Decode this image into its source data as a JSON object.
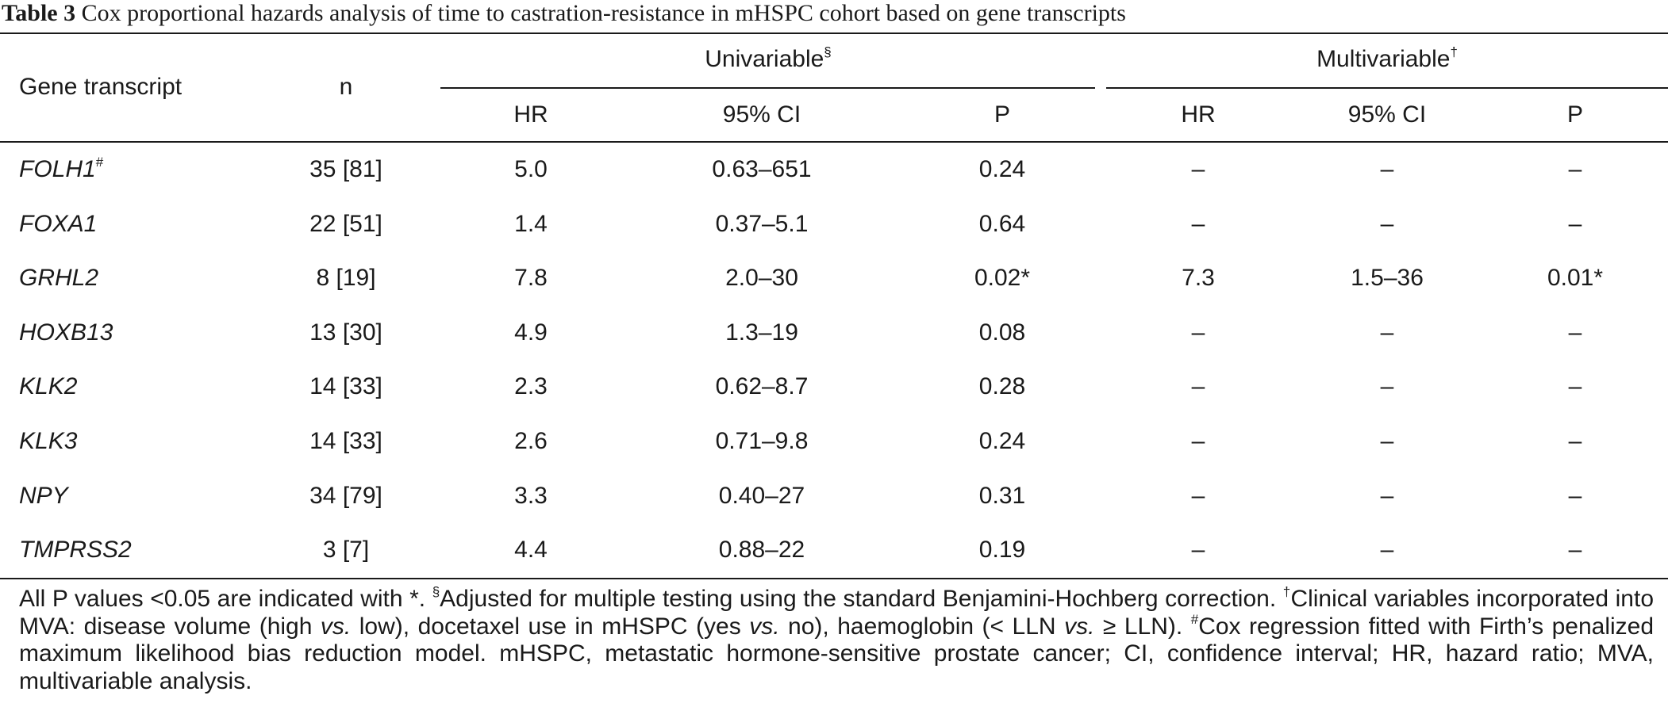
{
  "caption": {
    "label": "Table 3",
    "text": "Cox proportional hazards analysis of time to castration-resistance in mHSPC cohort based on gene transcripts"
  },
  "headers": {
    "gene": "Gene transcript",
    "n": "n",
    "univariable": "Univariable",
    "univariable_mark": "§",
    "multivariable": "Multivariable",
    "multivariable_mark": "†",
    "hr": "HR",
    "ci": "95% CI",
    "p": "P"
  },
  "rows": [
    {
      "gene": "FOLH1",
      "mark": "#",
      "n": "35 [81]",
      "u_hr": "5.0",
      "u_ci": "0.63–651",
      "u_p": "0.24",
      "m_hr": "–",
      "m_ci": "–",
      "m_p": "–"
    },
    {
      "gene": "FOXA1",
      "mark": "",
      "n": "22 [51]",
      "u_hr": "1.4",
      "u_ci": "0.37–5.1",
      "u_p": "0.64",
      "m_hr": "–",
      "m_ci": "–",
      "m_p": "–"
    },
    {
      "gene": "GRHL2",
      "mark": "",
      "n": "8 [19]",
      "u_hr": "7.8",
      "u_ci": "2.0–30",
      "u_p": "0.02*",
      "m_hr": "7.3",
      "m_ci": "1.5–36",
      "m_p": "0.01*"
    },
    {
      "gene": "HOXB13",
      "mark": "",
      "n": "13 [30]",
      "u_hr": "4.9",
      "u_ci": "1.3–19",
      "u_p": "0.08",
      "m_hr": "–",
      "m_ci": "–",
      "m_p": "–"
    },
    {
      "gene": "KLK2",
      "mark": "",
      "n": "14 [33]",
      "u_hr": "2.3",
      "u_ci": "0.62–8.7",
      "u_p": "0.28",
      "m_hr": "–",
      "m_ci": "–",
      "m_p": "–"
    },
    {
      "gene": "KLK3",
      "mark": "",
      "n": "14 [33]",
      "u_hr": "2.6",
      "u_ci": "0.71–9.8",
      "u_p": "0.24",
      "m_hr": "–",
      "m_ci": "–",
      "m_p": "–"
    },
    {
      "gene": "NPY",
      "mark": "",
      "n": "34 [79]",
      "u_hr": "3.3",
      "u_ci": "0.40–27",
      "u_p": "0.31",
      "m_hr": "–",
      "m_ci": "–",
      "m_p": "–"
    },
    {
      "gene": "TMPRSS2",
      "mark": "",
      "n": "3 [7]",
      "u_hr": "4.4",
      "u_ci": "0.88–22",
      "u_p": "0.19",
      "m_hr": "–",
      "m_ci": "–",
      "m_p": "–"
    }
  ],
  "footnote": {
    "s1": "All P values <0.05 are indicated with *. ",
    "mark_section": "§",
    "s2": "Adjusted for multiple testing using the standard Benjamini-Hochberg correction. ",
    "mark_dagger": "†",
    "s3": "Clinical variables incorporated into MVA: disease volume (high ",
    "vs": "vs.",
    "s4": " low), docetaxel use in mHSPC (yes ",
    "s5": " no), haemoglobin (< LLN ",
    "s6": " ≥ LLN). ",
    "mark_hash": "#",
    "s7": "Cox regression fitted with Firth’s penalized maximum likelihood bias reduction model. mHSPC, metastatic hormone-sensitive prostate cancer; CI, confidence interval; HR, hazard ratio; MVA, multivariable analysis."
  }
}
